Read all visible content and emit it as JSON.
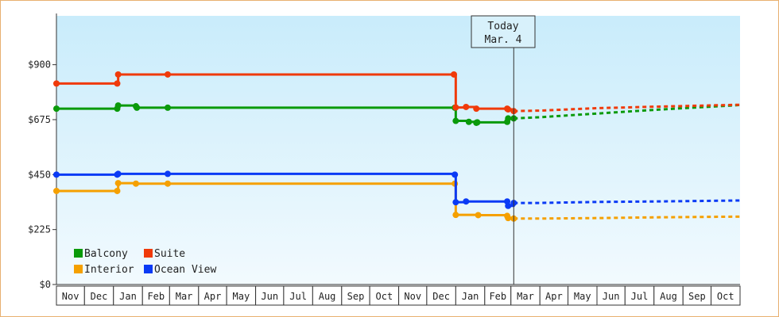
{
  "chart_data": {
    "type": "line",
    "title": "",
    "xlabel": "",
    "ylabel": "",
    "ylim": [
      0,
      1100
    ],
    "xlim": [
      "2023-11-01",
      "2025-11-01"
    ],
    "y_ticks": [
      0,
      225,
      450,
      675,
      900
    ],
    "y_tick_labels": [
      "$0",
      "$225",
      "$450",
      "$675",
      "$900"
    ],
    "x_tick_labels": [
      "Nov",
      "Dec",
      "Jan",
      "Feb",
      "Mar",
      "Apr",
      "May",
      "Jun",
      "Jul",
      "Aug",
      "Sep",
      "Oct",
      "Nov",
      "Dec",
      "Jan",
      "Feb",
      "Mar",
      "Apr",
      "May",
      "Jun",
      "Jul",
      "Aug",
      "Sep",
      "Oct"
    ],
    "today": {
      "date": "2025-03-04",
      "label_line1": "Today",
      "label_line2": "Mar. 4"
    },
    "legend_position": "bottom-left",
    "series": [
      {
        "name": "Balcony",
        "color": "#0a9a0a",
        "history": [
          [
            "2023-11-01",
            720
          ],
          [
            "2024-01-05",
            720
          ],
          [
            "2024-01-06",
            733
          ],
          [
            "2024-01-25",
            730
          ],
          [
            "2024-01-26",
            724
          ],
          [
            "2024-02-28",
            724
          ],
          [
            "2024-12-31",
            724
          ],
          [
            "2025-01-01",
            670
          ],
          [
            "2025-01-15",
            666
          ],
          [
            "2025-01-23",
            662
          ],
          [
            "2025-01-24",
            664
          ],
          [
            "2025-02-25",
            666
          ],
          [
            "2025-02-26",
            680
          ],
          [
            "2025-03-04",
            680
          ]
        ],
        "projection": [
          [
            "2025-03-04",
            680
          ],
          [
            "2025-04-01",
            685
          ],
          [
            "2025-06-01",
            700
          ],
          [
            "2025-08-01",
            715
          ],
          [
            "2025-11-01",
            735
          ]
        ]
      },
      {
        "name": "Suite",
        "color": "#f03a0a",
        "history": [
          [
            "2023-11-01",
            823
          ],
          [
            "2024-01-05",
            823
          ],
          [
            "2024-01-06",
            860
          ],
          [
            "2024-02-28",
            860
          ],
          [
            "2024-12-30",
            860
          ],
          [
            "2025-01-01",
            725
          ],
          [
            "2025-01-12",
            727
          ],
          [
            "2025-01-23",
            720
          ],
          [
            "2025-02-25",
            720
          ],
          [
            "2025-02-26",
            717
          ],
          [
            "2025-03-04",
            710
          ]
        ],
        "projection": [
          [
            "2025-03-04",
            710
          ],
          [
            "2025-04-01",
            712
          ],
          [
            "2025-06-01",
            722
          ],
          [
            "2025-08-01",
            728
          ],
          [
            "2025-11-01",
            736
          ]
        ]
      },
      {
        "name": "Interior",
        "color": "#f5a000",
        "history": [
          [
            "2023-11-01",
            383
          ],
          [
            "2024-01-05",
            383
          ],
          [
            "2024-01-06",
            415
          ],
          [
            "2024-01-25",
            413
          ],
          [
            "2024-02-28",
            413
          ],
          [
            "2024-12-31",
            413
          ],
          [
            "2025-01-01",
            285
          ],
          [
            "2025-01-25",
            284
          ],
          [
            "2025-02-25",
            281
          ],
          [
            "2025-02-26",
            272
          ],
          [
            "2025-03-04",
            270
          ]
        ],
        "projection": [
          [
            "2025-03-04",
            270
          ],
          [
            "2025-04-01",
            270
          ],
          [
            "2025-06-01",
            272
          ],
          [
            "2025-08-01",
            275
          ],
          [
            "2025-11-01",
            278
          ]
        ]
      },
      {
        "name": "Ocean View",
        "color": "#0a3af5",
        "history": [
          [
            "2023-11-01",
            450
          ],
          [
            "2024-01-05",
            450
          ],
          [
            "2024-01-06",
            453
          ],
          [
            "2024-02-28",
            453
          ],
          [
            "2024-12-31",
            450
          ],
          [
            "2025-01-01",
            337
          ],
          [
            "2025-01-12",
            340
          ],
          [
            "2025-02-25",
            340
          ],
          [
            "2025-02-26",
            322
          ],
          [
            "2025-03-04",
            334
          ]
        ],
        "projection": [
          [
            "2025-03-04",
            334
          ],
          [
            "2025-04-01",
            334
          ],
          [
            "2025-06-01",
            338
          ],
          [
            "2025-08-01",
            340
          ],
          [
            "2025-11-01",
            344
          ]
        ]
      }
    ],
    "grid": false
  }
}
